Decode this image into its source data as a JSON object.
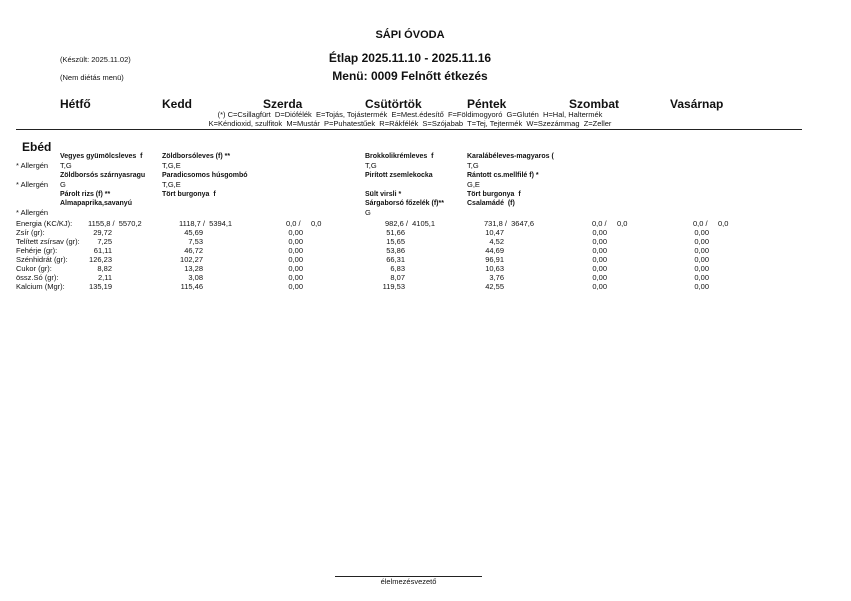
{
  "header": {
    "school": "SÁPI ÓVODA",
    "created": "(Készült: 2025.11.02)",
    "title": "Étlap 2025.11.10 - 2025.11.16",
    "diet": "(Nem diétás menü)",
    "menu": "Menü: 0009 Felnőtt étkezés"
  },
  "days": [
    "Hétfő",
    "Kedd",
    "Szerda",
    "Csütörtök",
    "Péntek",
    "Szombat",
    "Vasárnap"
  ],
  "allergen_legend": [
    "(*) C=Csillagfürt  D=Diófélék  E=Tojás, Tojástermék  E=Mest.édesítő  F=Földimogyoró  G=Glutén  H=Hal, Haltermék",
    "K=Kéndioxid, szulfitok  M=Mustár  P=Puhatestűek  R=Rákfélék  S=Szójabab  T=Tej, Tejtermék  W=Szezámmag  Z=Zeller"
  ],
  "section": "Ebéd",
  "allergen_label": "* Allergén",
  "blocks": [
    {
      "dishes": [
        [
          "Vegyes gyümölcsleves  f",
          "Zöldborsóleves (f) **",
          null,
          "Brokkolikrémleves  f",
          "Karalábéleves-magyaros (",
          null,
          null
        ]
      ],
      "allergens": [
        "T,G",
        "T,G,E",
        null,
        "T,G",
        "T,G",
        null,
        null
      ]
    },
    {
      "dishes": [
        [
          "Zöldborsós szárnyasragu",
          "Paradicsomos húsgombó",
          null,
          "Pirított zsemlekocka",
          "Rántott cs.mellfilé f) *",
          null,
          null
        ]
      ],
      "allergens": [
        "G",
        "T,G,E",
        null,
        null,
        "G,E",
        null,
        null
      ]
    },
    {
      "dishes": [
        [
          "Párolt rizs (f) **",
          "Tört burgonya  f",
          null,
          "Sült virsli *",
          "Tört burgonya  f",
          null,
          null
        ],
        [
          "Almapaprika,savanyú",
          null,
          null,
          "Sárgaborsó főzelék (f)**",
          "Csalamádé  (f)",
          null,
          null
        ]
      ],
      "allergens": [
        null,
        null,
        null,
        "G",
        null,
        null,
        null
      ]
    }
  ],
  "nutrition": [
    {
      "label": "Energia (KC/KJ):",
      "values": [
        "1155,8 /  5570,2",
        "1118,7 /  5394,1",
        "0,0 /     0,0",
        "982,6 /  4105,1",
        "731,8 /  3647,6",
        "0,0 /     0,0",
        "0,0 /     0,0"
      ]
    },
    {
      "label": "Zsír (gr):",
      "values": [
        "29,72",
        "45,69",
        "0,00",
        "51,66",
        "10,47",
        "0,00",
        "0,00"
      ]
    },
    {
      "label": "Telített zsírsav (gr):",
      "values": [
        "7,25",
        "7,53",
        "0,00",
        "15,65",
        "4,52",
        "0,00",
        "0,00"
      ]
    },
    {
      "label": "Fehérje (gr):",
      "values": [
        "61,11",
        "46,72",
        "0,00",
        "53,86",
        "44,69",
        "0,00",
        "0,00"
      ]
    },
    {
      "label": "Szénhidrát (gr):",
      "values": [
        "126,23",
        "102,27",
        "0,00",
        "66,31",
        "96,91",
        "0,00",
        "0,00"
      ]
    },
    {
      "label": "Cukor (gr):",
      "values": [
        "8,82",
        "13,28",
        "0,00",
        "6,83",
        "10,63",
        "0,00",
        "0,00"
      ]
    },
    {
      "label": "össz.Só (gr):",
      "values": [
        "2,11",
        "3,08",
        "0,00",
        "8,07",
        "3,76",
        "0,00",
        "0,00"
      ]
    },
    {
      "label": "Kalcium (Mgr):",
      "values": [
        "135,19",
        "115,46",
        "0,00",
        "119,53",
        "42,55",
        "0,00",
        "0,00"
      ]
    }
  ],
  "footer": "élelmezésvezető"
}
